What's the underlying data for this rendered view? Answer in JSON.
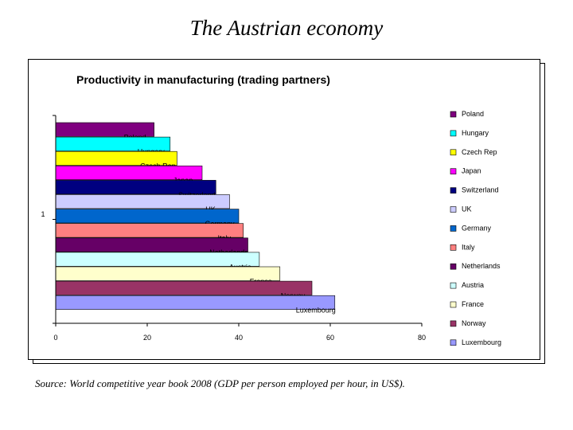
{
  "slide": {
    "title": "The Austrian economy",
    "source": "Source: World competitive year book 2008 (GDP per person employed per hour, in US$)."
  },
  "chart_data": {
    "type": "bar",
    "orientation": "horizontal",
    "title": "Productivity in manufacturing (trading partners)",
    "xlabel": "",
    "ylabel": "",
    "category_axis_labels": [
      "1"
    ],
    "xlim": [
      0,
      80
    ],
    "x_ticks": [
      0,
      20,
      40,
      60,
      80
    ],
    "grid": false,
    "legend_position": "right",
    "series": [
      {
        "name": "Poland",
        "value": 21.5,
        "color": "#7f007f"
      },
      {
        "name": "Hungary",
        "value": 25,
        "color": "#00ffff"
      },
      {
        "name": "Czech Rep",
        "value": 26.5,
        "color": "#ffff00"
      },
      {
        "name": "Japan",
        "value": 32,
        "color": "#ff00ff"
      },
      {
        "name": "Switzerland",
        "value": 35,
        "color": "#000080"
      },
      {
        "name": "UK",
        "value": 38,
        "color": "#ccccff"
      },
      {
        "name": "Germany",
        "value": 40,
        "color": "#0066cc"
      },
      {
        "name": "Italy",
        "value": 41,
        "color": "#ff8080"
      },
      {
        "name": "Netherlands",
        "value": 42,
        "color": "#660066"
      },
      {
        "name": "Austria",
        "value": 44.5,
        "color": "#ccffff"
      },
      {
        "name": "France",
        "value": 49,
        "color": "#ffffcc"
      },
      {
        "name": "Norway",
        "value": 56,
        "color": "#993366"
      },
      {
        "name": "Luxembourg",
        "value": 61,
        "color": "#9999ff"
      }
    ]
  }
}
